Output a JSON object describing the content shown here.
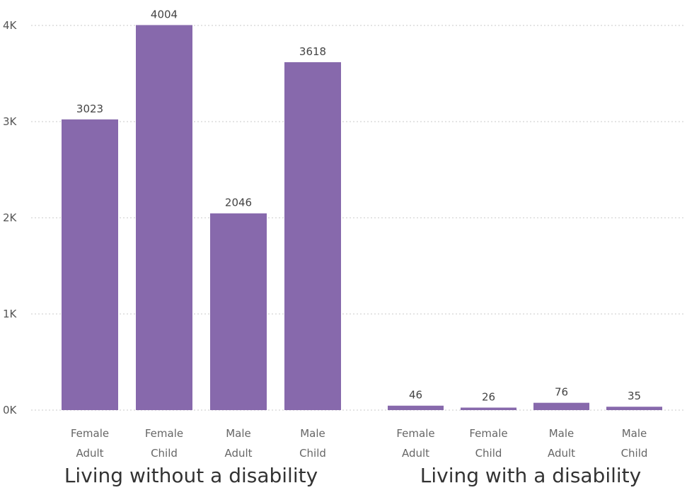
{
  "chart_data": {
    "type": "bar",
    "yticks": [
      {
        "value": 0,
        "label": "0K"
      },
      {
        "value": 1000,
        "label": "1K"
      },
      {
        "value": 2000,
        "label": "2K"
      },
      {
        "value": 3000,
        "label": "3K"
      },
      {
        "value": 4000,
        "label": "4K"
      }
    ],
    "ylim": [
      0,
      4000
    ],
    "grid": true,
    "bar_color": "#8769AC",
    "groups": [
      {
        "label": "Living without a disability",
        "categories": [
          {
            "line1": "Female",
            "line2": "Adult",
            "value": 3023
          },
          {
            "line1": "Female",
            "line2": "Child",
            "value": 4004
          },
          {
            "line1": "Male",
            "line2": "Adult",
            "value": 2046
          },
          {
            "line1": "Male",
            "line2": "Child",
            "value": 3618
          }
        ]
      },
      {
        "label": "Living with a disability",
        "categories": [
          {
            "line1": "Female",
            "line2": "Adult",
            "value": 46
          },
          {
            "line1": "Female",
            "line2": "Child",
            "value": 26
          },
          {
            "line1": "Male",
            "line2": "Adult",
            "value": 76
          },
          {
            "line1": "Male",
            "line2": "Child",
            "value": 35
          }
        ]
      }
    ]
  }
}
